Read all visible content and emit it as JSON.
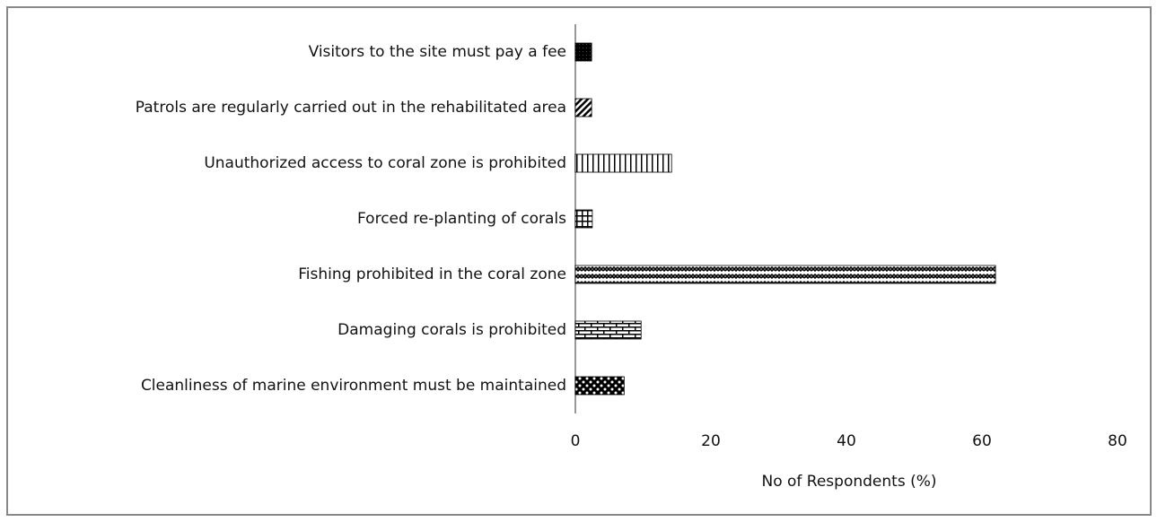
{
  "chart_data": {
    "type": "bar",
    "orientation": "horizontal",
    "x_label": "No of Respondents (%)",
    "categories": [
      "Visitors to the site must pay a fee",
      "Patrols are regularly carried out in the rehabilitated area",
      "Unauthorized access to coral zone is prohibited",
      "Forced re-planting of corals",
      "Fishing prohibited in the coral zone",
      "Damaging corals is prohibited",
      "Cleanliness of marine environment must be maintained"
    ],
    "values": [
      2.4,
      2.4,
      14.2,
      2.5,
      62,
      9.7,
      7.2
    ],
    "color": "#000000",
    "xlim": [
      0,
      80
    ],
    "xticks": [
      0,
      20,
      40,
      60,
      80
    ],
    "grid": false
  }
}
